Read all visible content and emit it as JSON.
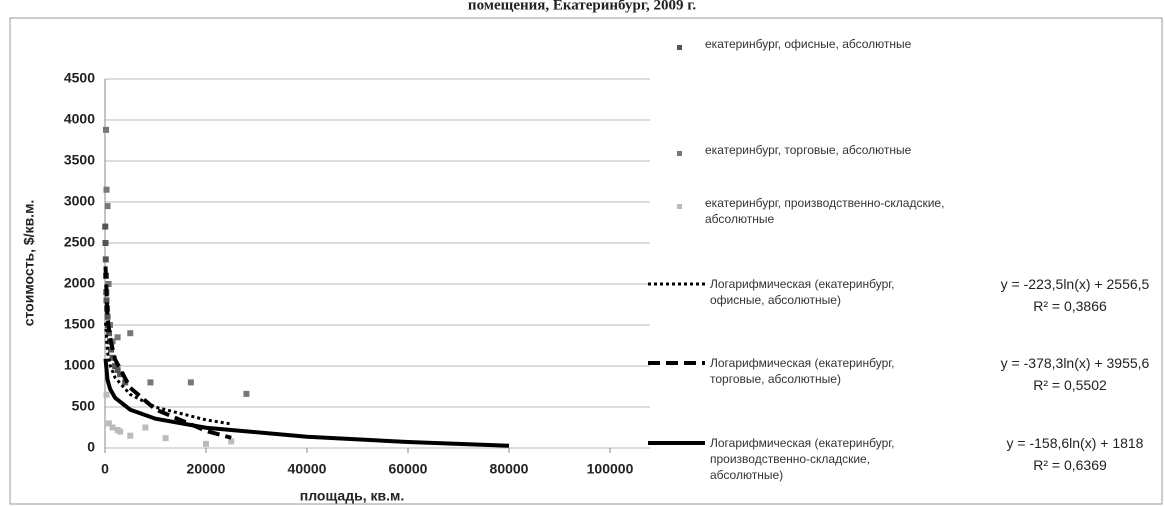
{
  "chart_data": {
    "type": "scatter",
    "title": "помещения, Екатеринбург, 2009 г.",
    "x_label": "площадь, кв.м.",
    "y_label": "стоимость, $/кв.м.",
    "xlim": [
      0,
      100000
    ],
    "xticks": [
      0,
      20000,
      40000,
      60000,
      80000,
      100000
    ],
    "ylim": [
      0,
      4500
    ],
    "yticks": [
      0,
      500,
      1000,
      1500,
      2000,
      2500,
      3000,
      3500,
      4000,
      4500
    ],
    "grid": true,
    "legend": "right",
    "series": [
      {
        "name": "екатеринбург, офисные, абсолютные",
        "color": "#555555",
        "x": [
          50,
          100,
          150,
          200,
          250,
          300,
          400,
          500,
          600,
          800,
          1000,
          1200,
          1500,
          2000,
          2500,
          3000,
          4000
        ],
        "values": [
          2700,
          2500,
          2300,
          2100,
          1900,
          1800,
          1700,
          1600,
          1500,
          1400,
          1300,
          1200,
          1100,
          1000,
          950,
          900,
          800
        ]
      },
      {
        "name": "екатеринбург, торговые, абсолютные",
        "color": "#777777",
        "x": [
          200,
          300,
          500,
          700,
          1000,
          1500,
          2500,
          5000,
          9000,
          17000,
          28000
        ],
        "values": [
          3880,
          3150,
          2950,
          2000,
          1500,
          1300,
          1350,
          1400,
          800,
          800,
          660
        ]
      },
      {
        "name": "екатеринбург, производственно-складские, абсолютные",
        "color": "#bbbbbb",
        "x": [
          300,
          800,
          1500,
          2500,
          3000,
          5000,
          8000,
          12000,
          20000,
          25000
        ],
        "values": [
          650,
          300,
          250,
          220,
          200,
          150,
          250,
          120,
          50,
          80
        ]
      }
    ],
    "trendlines": [
      {
        "name": "Логарифмическая (екатеринбург, офисные, абсолютные)",
        "style": "dotted",
        "equation": "y = -223,5ln(x) + 2556,5",
        "r2": "R² = 0,3866",
        "x": [
          100,
          500,
          1000,
          2000,
          5000,
          10000,
          20000,
          25000
        ],
        "values": [
          1527,
          1167,
          1012,
          858,
          653,
          498,
          343,
          293
        ]
      },
      {
        "name": "Логарифмическая (екатеринбург, торговые, абсолютные)",
        "style": "dashed",
        "equation": "y = -378,3ln(x) + 3955,6",
        "r2": "R² = 0,5502",
        "x": [
          100,
          500,
          1000,
          2000,
          5000,
          10000,
          20000,
          25000
        ],
        "values": [
          2214,
          1605,
          1342,
          1080,
          734,
          471,
          209,
          125
        ]
      },
      {
        "name": "Логарифмическая (екатеринбург, производственно-складские, абсолютные)",
        "style": "solid",
        "equation": "y = -158,6ln(x) + 1818",
        "r2": "R² = 0,6369",
        "x": [
          100,
          500,
          1000,
          2000,
          5000,
          10000,
          20000,
          40000,
          60000,
          80000
        ],
        "values": [
          1088,
          832,
          722,
          612,
          467,
          357,
          247,
          137,
          73,
          27
        ]
      }
    ]
  }
}
